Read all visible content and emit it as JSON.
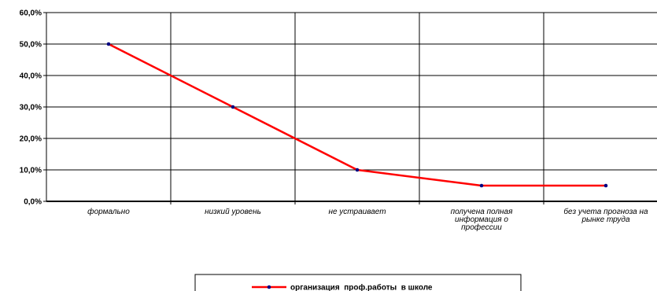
{
  "chart_data": {
    "type": "line",
    "categories": [
      "формально",
      "низкий уровень",
      "не устраивает",
      "получена полная информация о профессии",
      "без учета прогноза на рынке труда"
    ],
    "category_lines": [
      [
        "формально"
      ],
      [
        "низкий уровень"
      ],
      [
        "не устраивает"
      ],
      [
        "получена полная",
        "информация о",
        "профессии"
      ],
      [
        "без учета прогноза на",
        "рынке труда"
      ]
    ],
    "series": [
      {
        "name": "организация  проф.работы  в школе",
        "values": [
          50.0,
          30.0,
          10.0,
          5.0,
          5.0
        ],
        "color": "#ff0000",
        "marker_color": "#000080"
      }
    ],
    "y_ticks": [
      "0,0%",
      "10,0%",
      "20,0%",
      "30,0%",
      "40,0%",
      "50,0%",
      "60,0%"
    ],
    "ylim": [
      0,
      60
    ],
    "y_unit": "%",
    "grid": true,
    "legend_position": "bottom"
  }
}
